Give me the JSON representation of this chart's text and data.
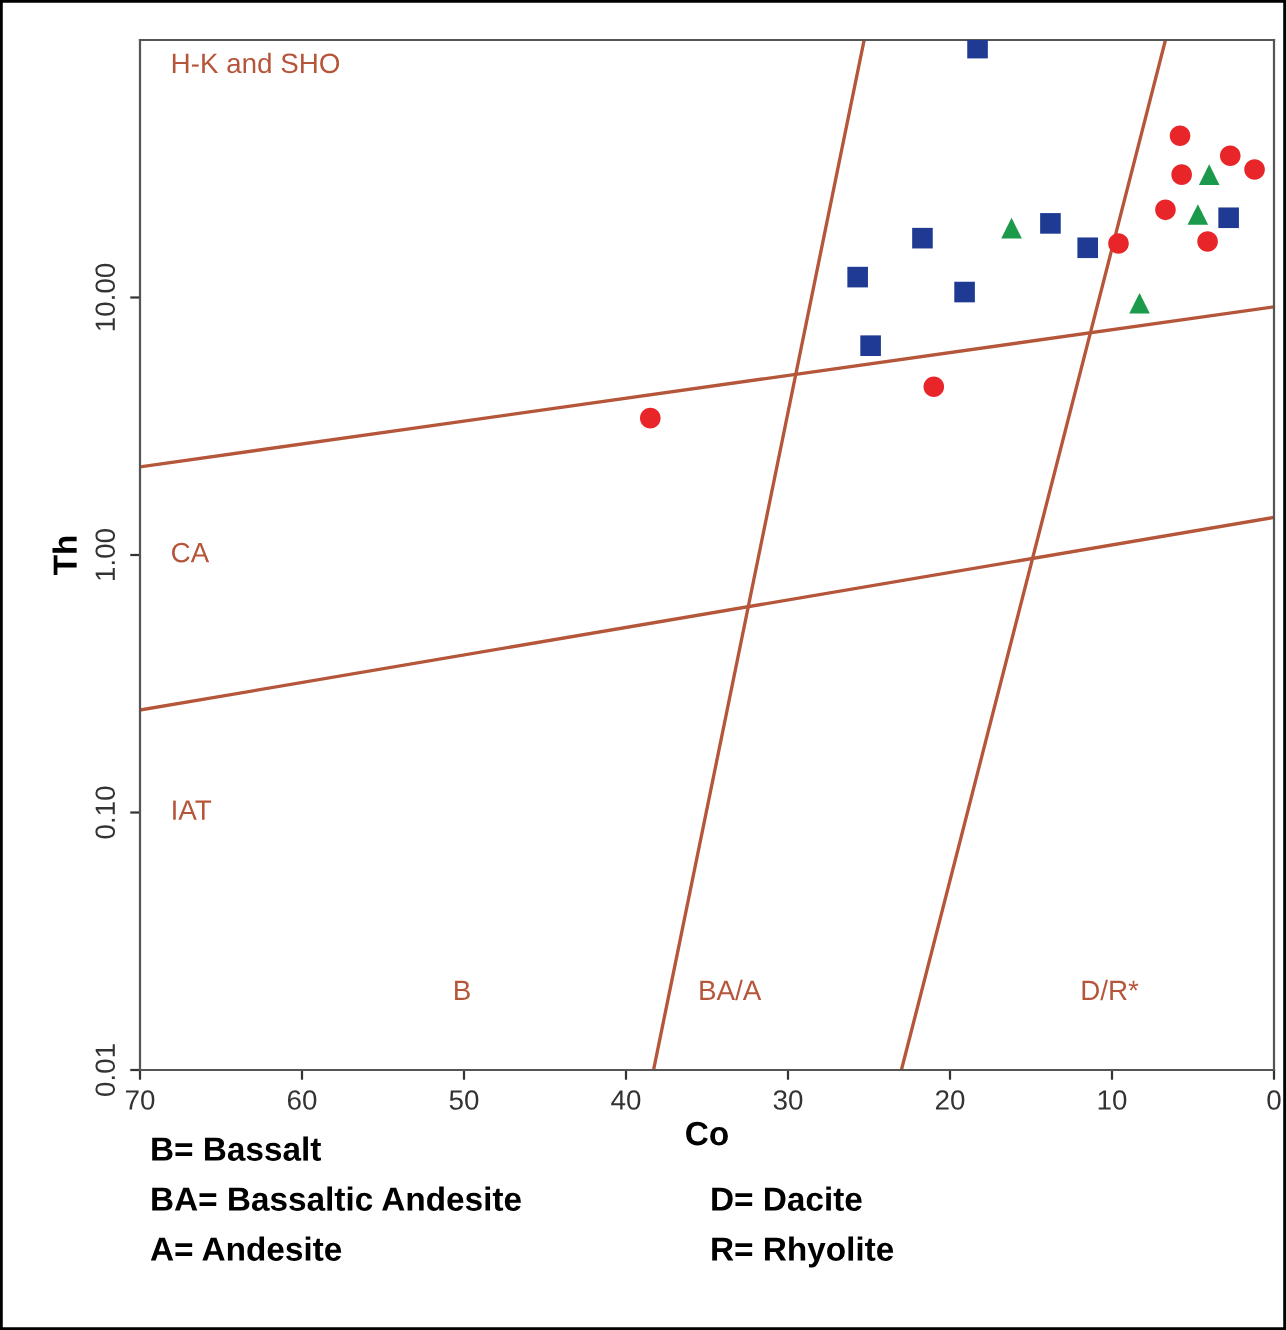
{
  "chart_data": {
    "type": "scatter",
    "xlabel": "Co",
    "ylabel": "Th",
    "log": "y",
    "grid": false,
    "legend": false,
    "xlim": [
      70,
      0
    ],
    "xticks": [
      70,
      60,
      50,
      40,
      30,
      20,
      10,
      0
    ],
    "ylim": [
      0.01,
      100
    ],
    "yticks": [
      {
        "value": 0.01,
        "label": "0.01"
      },
      {
        "value": 0.1,
        "label": "0.10"
      },
      {
        "value": 1,
        "label": "1.00"
      },
      {
        "value": 10,
        "label": "10.00"
      }
    ],
    "series": [
      {
        "type": "line",
        "color": "#b5553a",
        "x": [
          70,
          0
        ],
        "values": [
          2.2,
          9.2
        ],
        "marker": "none"
      },
      {
        "type": "line",
        "color": "#b5553a",
        "x": [
          70,
          0
        ],
        "values": [
          0.25,
          1.4
        ],
        "marker": "none"
      },
      {
        "type": "line",
        "color": "#b5553a",
        "x": [
          38.3,
          25.3
        ],
        "values": [
          0.01,
          100
        ],
        "marker": "none"
      },
      {
        "type": "line",
        "color": "#b5553a",
        "x": [
          23.0,
          6.7
        ],
        "values": [
          0.01,
          100
        ],
        "marker": "none"
      },
      {
        "color": "#1f3a93",
        "marker": "square",
        "x": [
          18.3,
          21.7,
          25.7,
          19.1,
          24.9,
          13.8,
          11.5,
          2.8
        ],
        "values": [
          93,
          17,
          12,
          10.5,
          6.5,
          19.4,
          15.6,
          20.4
        ]
      },
      {
        "color": "#1a9a4a",
        "marker": "triangle",
        "x": [
          16.2,
          4.0,
          4.7,
          8.3
        ],
        "values": [
          18.6,
          30,
          21,
          9.5
        ]
      },
      {
        "color": "#e8262a",
        "marker": "circle",
        "x": [
          5.8,
          2.7,
          1.2,
          5.7,
          6.7,
          4.1,
          9.6,
          21.0,
          38.5
        ],
        "values": [
          42.5,
          35.5,
          31.4,
          30,
          21.9,
          16.5,
          16.2,
          4.5,
          3.4
        ]
      }
    ],
    "annotations": [
      "H-K and SHO",
      "CA",
      "IAT",
      "B",
      "BA/A",
      "D/R*",
      "B= Bassalt",
      "BA= Bassaltic Andesite",
      "A= Andesite",
      "D= Dacite",
      "R= Rhyolite"
    ]
  }
}
